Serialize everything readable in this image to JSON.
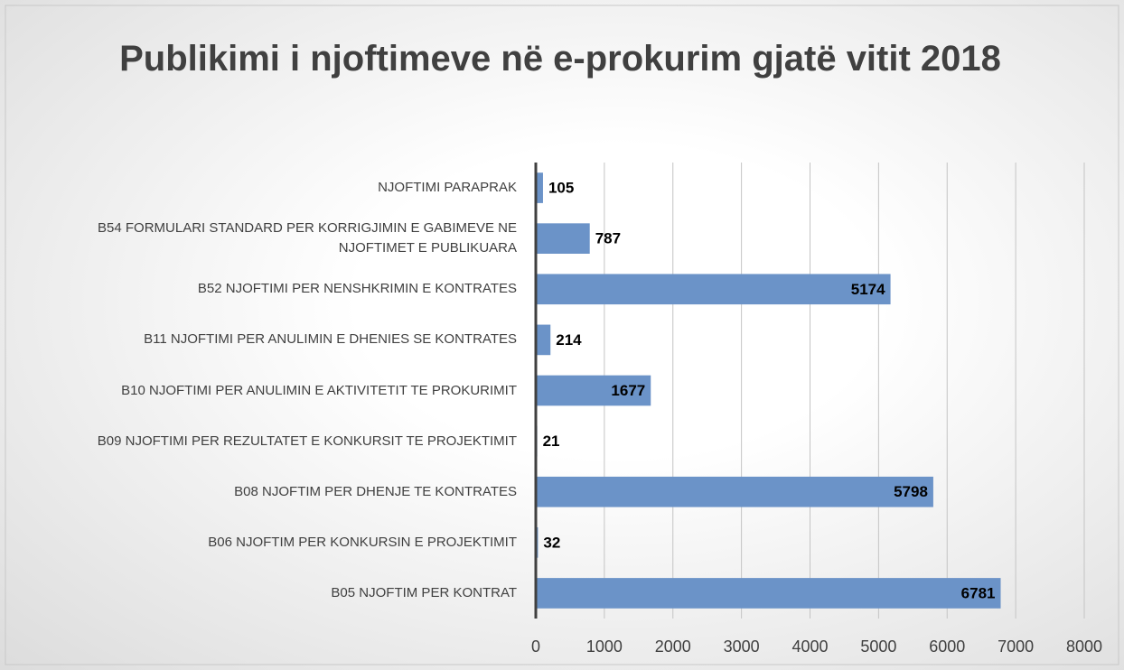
{
  "chart_data": {
    "type": "bar",
    "orientation": "horizontal",
    "title": "Publikimi i njoftimeve në e-prokurim gjatë vitit 2018",
    "categories": [
      "NJOFTIMI PARAPRAK",
      "B54 FORMULARI STANDARD PER KORRIGJIMIN E GABIMEVE NE NJOFTIMET E PUBLIKUARA",
      "B52 NJOFTIMI PER NENSHKRIMIN E KONTRATES",
      "B11 NJOFTIMI PER ANULIMIN E DHENIES SE KONTRATES",
      "B10 NJOFTIMI PER ANULIMIN E AKTIVITETIT TE PROKURIMIT",
      "B09 NJOFTIMI PER REZULTATET E KONKURSIT TE PROJEKTIMIT",
      "B08 NJOFTIM PER DHENJE TE KONTRATES",
      "B06 NJOFTIM PER KONKURSIN E PROJEKTIMIT",
      "B05 NJOFTIM PER KONTRAT"
    ],
    "values": [
      105,
      787,
      5174,
      214,
      1677,
      21,
      5798,
      32,
      6781
    ],
    "color": "#6b93c8",
    "xlim": [
      0,
      8000
    ],
    "xticks": [
      0,
      1000,
      2000,
      3000,
      4000,
      5000,
      6000,
      7000,
      8000
    ],
    "grid": true
  }
}
